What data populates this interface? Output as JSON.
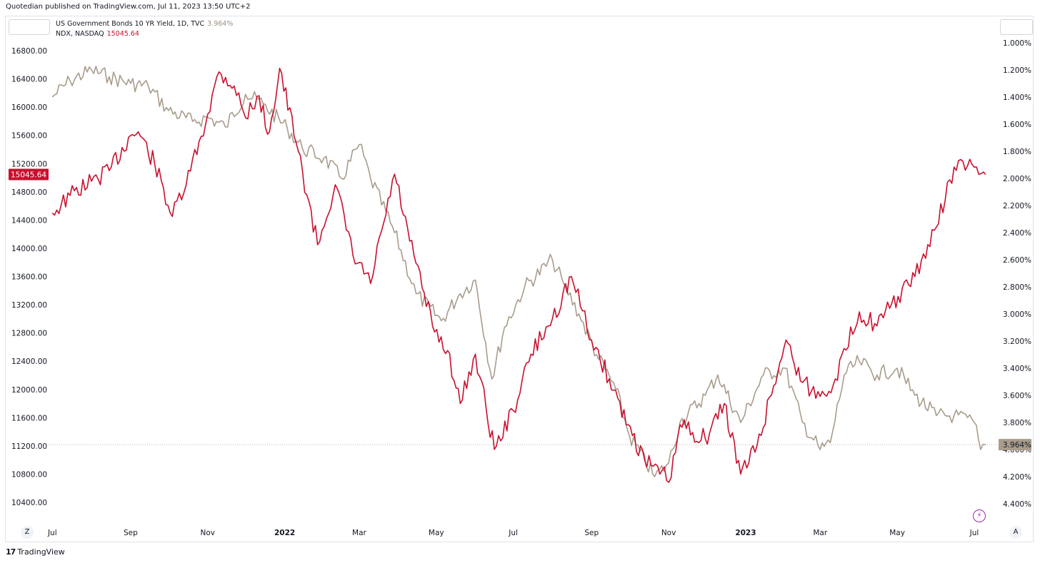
{
  "header": {
    "publisher_caption": "Quotedian published on TradingView.com, Jul 11, 2023 13:50 UTC+2"
  },
  "legend": {
    "series1_label": "US Government Bonds 10 YR Yield, 1D, TVC",
    "series1_value": "3.964%",
    "series2_label": "NDX, NASDAQ",
    "series2_value": "15045.64"
  },
  "badges": {
    "ndx_last": "15045.64",
    "yield_last": "3.964%"
  },
  "buttons": {
    "zoom_label": "Z",
    "auto_label": "A",
    "replay_icon": "lightning-icon"
  },
  "footer": {
    "brand": "TradingView",
    "brand_mark": "17"
  },
  "colors": {
    "ndx": "#c8102e",
    "yield": "#a89c8c",
    "grid": "#f0f3fa",
    "badge_yield_bg": "#a89c8c"
  },
  "chart_data": {
    "type": "line",
    "title": "",
    "x_ticks": [
      "Jul",
      "Sep",
      "Nov",
      "2022",
      "Mar",
      "May",
      "Jul",
      "Sep",
      "Nov",
      "2023",
      "Mar",
      "May",
      "Jul"
    ],
    "x_ticks_bold": [
      "2022",
      "2023"
    ],
    "left_axis": {
      "ticks": [
        "16800.00",
        "16400.00",
        "16000.00",
        "15600.00",
        "15200.00",
        "14800.00",
        "14400.00",
        "14000.00",
        "13600.00",
        "13200.00",
        "12800.00",
        "12400.00",
        "12000.00",
        "11600.00",
        "11200.00",
        "10800.00",
        "10400.00"
      ],
      "range": [
        10400,
        16800
      ]
    },
    "right_axis": {
      "ticks": [
        "1.000%",
        "1.200%",
        "1.400%",
        "1.600%",
        "1.800%",
        "2.000%",
        "2.200%",
        "2.400%",
        "2.600%",
        "2.800%",
        "3.000%",
        "3.200%",
        "3.400%",
        "3.600%",
        "3.800%",
        "4.000%",
        "4.200%",
        "4.400%"
      ],
      "range": [
        1.0,
        4.4
      ],
      "inverted": true
    },
    "series": [
      {
        "name": "NDX, NASDAQ",
        "axis": "left",
        "x": [
          "2021-07-01",
          "2021-07-15",
          "2021-08-01",
          "2021-08-15",
          "2021-09-01",
          "2021-09-07",
          "2021-09-20",
          "2021-10-04",
          "2021-10-15",
          "2021-11-01",
          "2021-11-10",
          "2021-11-22",
          "2021-12-01",
          "2021-12-10",
          "2021-12-20",
          "2021-12-28",
          "2022-01-10",
          "2022-01-27",
          "2022-02-10",
          "2022-02-24",
          "2022-03-10",
          "2022-03-29",
          "2022-04-10",
          "2022-04-28",
          "2022-05-10",
          "2022-05-20",
          "2022-06-01",
          "2022-06-16",
          "2022-07-01",
          "2022-07-15",
          "2022-08-01",
          "2022-08-16",
          "2022-09-01",
          "2022-09-15",
          "2022-09-30",
          "2022-10-13",
          "2022-10-25",
          "2022-11-03",
          "2022-11-10",
          "2022-11-30",
          "2022-12-15",
          "2022-12-28",
          "2023-01-10",
          "2023-02-02",
          "2023-02-15",
          "2023-03-01",
          "2023-03-13",
          "2023-04-01",
          "2023-04-15",
          "2023-04-25",
          "2023-05-15",
          "2023-06-01",
          "2023-06-15",
          "2023-07-01",
          "2023-07-10"
        ],
        "y": [
          14500,
          14750,
          14950,
          15100,
          15600,
          15650,
          15200,
          14450,
          14900,
          15900,
          16500,
          16300,
          15850,
          16150,
          15650,
          16550,
          15500,
          14050,
          14900,
          13900,
          13500,
          15050,
          14100,
          12900,
          12550,
          11800,
          12500,
          11150,
          11700,
          12500,
          13000,
          13600,
          12700,
          12150,
          11500,
          11000,
          10800,
          10750,
          11500,
          11300,
          11800,
          10800,
          11200,
          12700,
          12100,
          11900,
          12150,
          13100,
          12900,
          13150,
          13600,
          14300,
          15150,
          15150,
          15045.64
        ]
      },
      {
        "name": "US Government Bonds 10 YR Yield, 1D, TVC",
        "axis": "right",
        "x": [
          "2021-07-01",
          "2021-07-15",
          "2021-08-01",
          "2021-08-15",
          "2021-09-01",
          "2021-09-15",
          "2021-10-01",
          "2021-10-20",
          "2021-11-01",
          "2021-11-15",
          "2021-12-01",
          "2021-12-15",
          "2022-01-03",
          "2022-01-15",
          "2022-02-01",
          "2022-02-15",
          "2022-03-01",
          "2022-03-10",
          "2022-03-29",
          "2022-04-15",
          "2022-05-05",
          "2022-05-20",
          "2022-06-01",
          "2022-06-14",
          "2022-06-24",
          "2022-07-10",
          "2022-08-01",
          "2022-08-10",
          "2022-08-22",
          "2022-09-05",
          "2022-09-20",
          "2022-10-01",
          "2022-10-21",
          "2022-11-01",
          "2022-11-10",
          "2022-11-30",
          "2022-12-10",
          "2022-12-28",
          "2023-01-15",
          "2023-02-01",
          "2023-02-15",
          "2023-03-01",
          "2023-03-09",
          "2023-03-20",
          "2023-04-01",
          "2023-04-15",
          "2023-05-01",
          "2023-05-15",
          "2023-06-01",
          "2023-06-15",
          "2023-07-01",
          "2023-07-06",
          "2023-07-10"
        ],
        "y": [
          1.4,
          1.28,
          1.2,
          1.25,
          1.3,
          1.32,
          1.5,
          1.58,
          1.55,
          1.62,
          1.38,
          1.45,
          1.63,
          1.78,
          1.85,
          2.0,
          1.75,
          2.0,
          2.4,
          2.85,
          3.05,
          2.85,
          2.75,
          3.48,
          3.1,
          2.8,
          2.6,
          2.78,
          3.0,
          3.3,
          3.55,
          3.9,
          4.2,
          4.1,
          3.8,
          3.6,
          3.45,
          3.8,
          3.45,
          3.4,
          3.8,
          4.0,
          3.95,
          3.45,
          3.35,
          3.45,
          3.4,
          3.6,
          3.75,
          3.75,
          3.8,
          4.0,
          3.964
        ]
      }
    ],
    "reference_line": {
      "axis": "right",
      "value": 3.964
    },
    "grid": true,
    "legend_position": "top-left"
  }
}
